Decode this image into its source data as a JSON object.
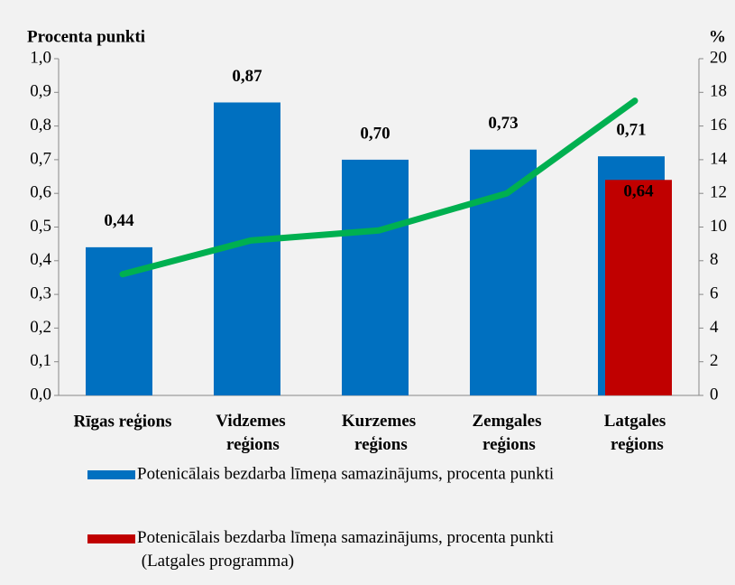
{
  "chart_data": {
    "type": "bar_line",
    "y_label": "Procenta punkti",
    "y2_label": "%",
    "categories": [
      "Rīgas reģions",
      "Vidzemes reģions",
      "Kurzemes reģions",
      "Zemgales reģions",
      "Latgales reģions"
    ],
    "series": [
      {
        "name": "Potenicālais bezdarba līmeņa samazinājums, procenta punkti",
        "color": "#0070c0",
        "type": "bar",
        "values": [
          0.44,
          0.87,
          0.7,
          0.73,
          0.71
        ],
        "value_labels": [
          "0,44",
          "0,87",
          "0,70",
          "0,73",
          "0,71"
        ]
      },
      {
        "name": "Potenicālais bezdarba līmeņa samazinājums, procenta punkti (Latgales programma)",
        "color": "#c00000",
        "type": "bar",
        "values": [
          null,
          null,
          null,
          null,
          0.64
        ],
        "value_labels": [
          null,
          null,
          null,
          null,
          "0,64"
        ]
      },
      {
        "color": "#00b050",
        "type": "line",
        "axis": "y2",
        "values": [
          7.2,
          9.2,
          9.8,
          12.0,
          17.5
        ]
      }
    ],
    "ylim": [
      0,
      1
    ],
    "yticks": [
      {
        "value": 0,
        "label": "0,0"
      },
      {
        "value": 0.1,
        "label": "0,1"
      },
      {
        "value": 0.2,
        "label": "0,2"
      },
      {
        "value": 0.3,
        "label": "0,3"
      },
      {
        "value": 0.4,
        "label": "0,4"
      },
      {
        "value": 0.5,
        "label": "0,5"
      },
      {
        "value": 0.6,
        "label": "0,6"
      },
      {
        "value": 0.7,
        "label": "0,7"
      },
      {
        "value": 0.8,
        "label": "0,8"
      },
      {
        "value": 0.9,
        "label": "0,9"
      },
      {
        "value": 1,
        "label": "1,0"
      }
    ],
    "y2lim": [
      0,
      20
    ],
    "y2ticks": [
      0,
      2,
      4,
      6,
      8,
      10,
      12,
      14,
      16,
      18,
      20
    ]
  }
}
